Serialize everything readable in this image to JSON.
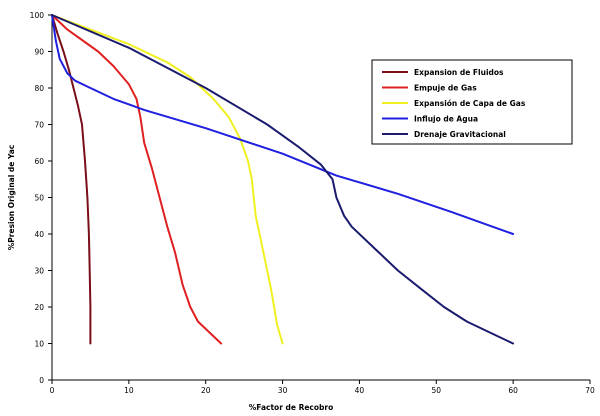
{
  "chart_data": {
    "type": "line",
    "title": "",
    "xlabel": "%Factor de Recobro",
    "ylabel": "%Presion Original de Yac",
    "xlim": [
      0,
      70
    ],
    "ylim": [
      0,
      100
    ],
    "xticks": [
      0,
      10,
      20,
      30,
      40,
      50,
      60,
      70
    ],
    "yticks": [
      0,
      10,
      20,
      30,
      40,
      50,
      60,
      70,
      80,
      90,
      100
    ],
    "grid": false,
    "legend_position": "top-right",
    "series": [
      {
        "name": "Expansion de Fluidos",
        "color": "#7a0f1a",
        "points": [
          [
            0,
            100
          ],
          [
            0.7,
            95
          ],
          [
            1.5,
            90
          ],
          [
            2.2,
            85
          ],
          [
            2.8,
            80
          ],
          [
            3.4,
            75
          ],
          [
            3.9,
            70
          ],
          [
            4.3,
            60
          ],
          [
            4.6,
            50
          ],
          [
            4.8,
            40
          ],
          [
            4.9,
            30
          ],
          [
            5,
            20
          ],
          [
            5,
            10
          ]
        ]
      },
      {
        "name": "Empuje de Gas",
        "color": "#e02020",
        "points": [
          [
            0,
            100
          ],
          [
            2,
            96
          ],
          [
            4,
            93
          ],
          [
            6,
            90
          ],
          [
            8,
            86
          ],
          [
            10,
            81
          ],
          [
            11,
            77
          ],
          [
            11.5,
            72
          ],
          [
            12,
            65
          ],
          [
            13,
            58
          ],
          [
            14,
            50
          ],
          [
            15,
            42
          ],
          [
            16,
            35
          ],
          [
            17,
            26
          ],
          [
            18,
            20
          ],
          [
            19,
            16
          ],
          [
            20,
            14
          ],
          [
            22,
            10
          ]
        ]
      },
      {
        "name": "Expansión de Capa de Gas",
        "color": "#f0f020",
        "points": [
          [
            0,
            100
          ],
          [
            5,
            96
          ],
          [
            10,
            92
          ],
          [
            15,
            87
          ],
          [
            18,
            83
          ],
          [
            21,
            77
          ],
          [
            23,
            72
          ],
          [
            24.5,
            66
          ],
          [
            25.5,
            60
          ],
          [
            26,
            55
          ],
          [
            26.5,
            45
          ],
          [
            27.5,
            35
          ],
          [
            28.5,
            25
          ],
          [
            29.3,
            15
          ],
          [
            30,
            10
          ]
        ]
      },
      {
        "name": "Influjo de Agua",
        "color": "#2020e0",
        "points": [
          [
            0,
            100
          ],
          [
            0.5,
            93
          ],
          [
            1,
            88
          ],
          [
            2,
            84
          ],
          [
            3,
            82
          ],
          [
            5,
            80
          ],
          [
            8,
            77
          ],
          [
            12,
            74
          ],
          [
            20,
            69
          ],
          [
            30,
            62
          ],
          [
            37,
            56
          ],
          [
            45,
            51
          ],
          [
            52,
            46
          ],
          [
            56,
            43
          ],
          [
            60,
            40
          ]
        ]
      },
      {
        "name": "Drenaje Gravitacional",
        "color": "#1a1a6e",
        "points": [
          [
            0,
            100
          ],
          [
            10,
            91
          ],
          [
            20,
            80
          ],
          [
            28,
            70
          ],
          [
            32,
            64
          ],
          [
            35,
            59
          ],
          [
            36.5,
            55
          ],
          [
            37,
            50
          ],
          [
            38,
            45
          ],
          [
            39,
            42
          ],
          [
            42,
            36
          ],
          [
            45,
            30
          ],
          [
            48,
            25
          ],
          [
            51,
            20
          ],
          [
            54,
            16
          ],
          [
            57,
            13
          ],
          [
            60,
            10
          ]
        ]
      }
    ]
  }
}
